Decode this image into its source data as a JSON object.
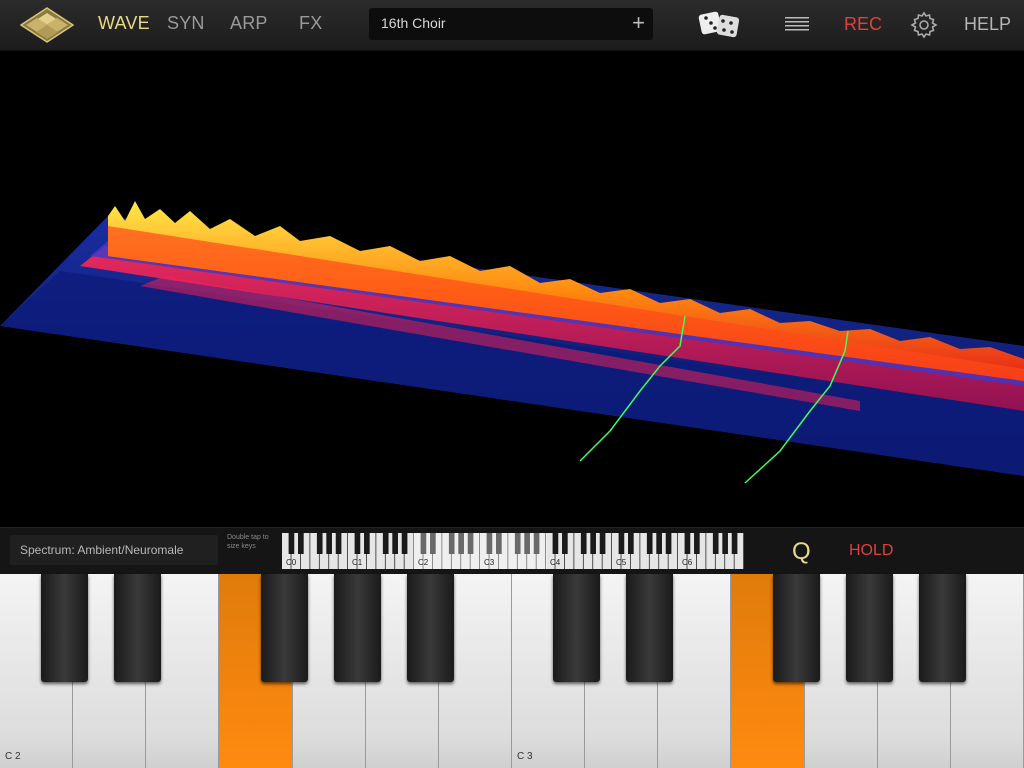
{
  "topbar": {
    "tabs": [
      {
        "label": "WAVE",
        "active": true
      },
      {
        "label": "SYN",
        "active": false
      },
      {
        "label": "ARP",
        "active": false
      },
      {
        "label": "FX",
        "active": false
      }
    ],
    "preset_name": "16th Choir",
    "preset_add": "+",
    "rec_label": "REC",
    "help_label": "HELP"
  },
  "strip": {
    "spectrum_label": "Spectrum: Ambient/Neuromale",
    "double_tap_hint": "Double tap to size keys",
    "mini_key_labels": [
      "C0",
      "C1",
      "C2",
      "C3",
      "C4",
      "C5",
      "C6"
    ],
    "q_label": "Q",
    "hold_label": "HOLD"
  },
  "keyboard": {
    "labels": [
      "C 2",
      "C 3"
    ],
    "pressed_notes": [
      "F2",
      "F3"
    ]
  },
  "colors": {
    "accent": "#e8d98a",
    "rec": "#e0413a",
    "pressed_key": "#ff8a10"
  }
}
